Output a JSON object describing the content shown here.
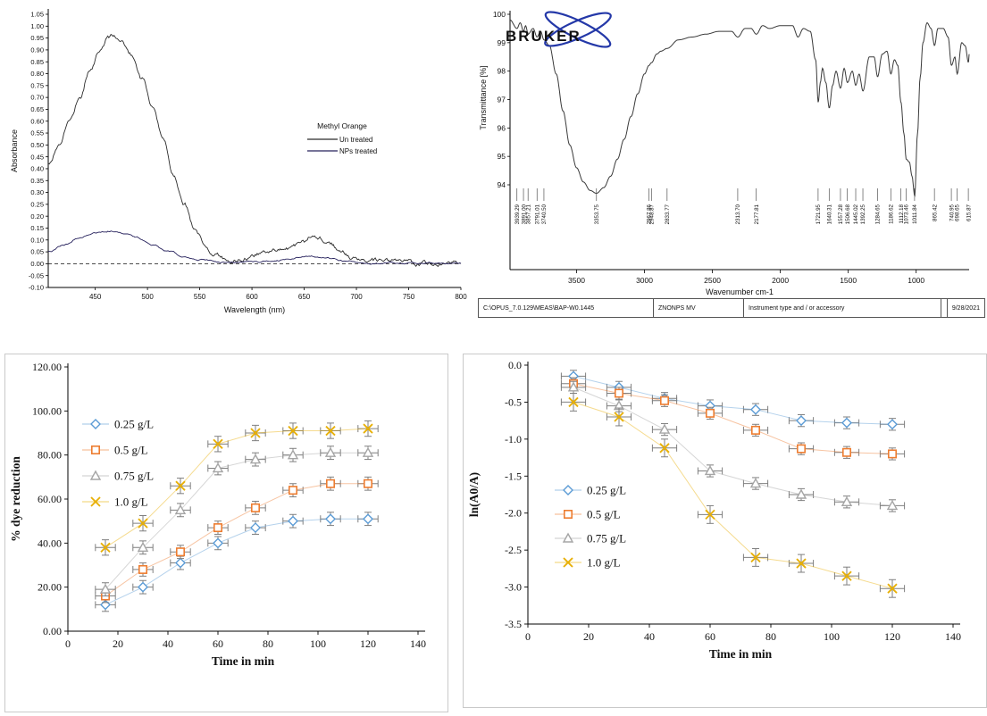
{
  "chart_data": [
    {
      "id": "uvvis-absorbance-spectrum",
      "type": "line",
      "xlabel": "Wavelength (nm)",
      "ylabel": "Absorbance",
      "xlim": [
        405,
        800
      ],
      "ylim": [
        -0.1,
        1.05
      ],
      "xticks": [
        450,
        500,
        550,
        600,
        650,
        700,
        750,
        800
      ],
      "ytick_step": 0.05,
      "legend_title": "Methyl Orange",
      "zero_line": true,
      "series": [
        {
          "name": "Un treated",
          "color": "#2b2b2b",
          "noise": 0.012,
          "points": [
            [
              405,
              0.42
            ],
            [
              415,
              0.5
            ],
            [
              425,
              0.6
            ],
            [
              435,
              0.7
            ],
            [
              445,
              0.82
            ],
            [
              455,
              0.9
            ],
            [
              462,
              0.95
            ],
            [
              468,
              0.96
            ],
            [
              475,
              0.93
            ],
            [
              485,
              0.88
            ],
            [
              495,
              0.78
            ],
            [
              505,
              0.66
            ],
            [
              515,
              0.52
            ],
            [
              525,
              0.38
            ],
            [
              535,
              0.26
            ],
            [
              545,
              0.15
            ],
            [
              555,
              0.08
            ],
            [
              565,
              0.04
            ],
            [
              575,
              0.02
            ],
            [
              590,
              0.02
            ],
            [
              605,
              0.04
            ],
            [
              620,
              0.06
            ],
            [
              635,
              0.07
            ],
            [
              650,
              0.09
            ],
            [
              658,
              0.12
            ],
            [
              665,
              0.11
            ],
            [
              675,
              0.08
            ],
            [
              685,
              0.05
            ],
            [
              695,
              0.02
            ],
            [
              710,
              0.01
            ],
            [
              730,
              0.005
            ],
            [
              760,
              0.002
            ],
            [
              800,
              0.0
            ]
          ]
        },
        {
          "name": "NPs treated",
          "color": "#26215c",
          "noise": 0.004,
          "points": [
            [
              405,
              0.05
            ],
            [
              420,
              0.08
            ],
            [
              435,
              0.11
            ],
            [
              450,
              0.13
            ],
            [
              465,
              0.14
            ],
            [
              478,
              0.13
            ],
            [
              490,
              0.11
            ],
            [
              505,
              0.08
            ],
            [
              520,
              0.05
            ],
            [
              535,
              0.03
            ],
            [
              550,
              0.015
            ],
            [
              570,
              0.005
            ],
            [
              600,
              0.008
            ],
            [
              630,
              0.015
            ],
            [
              655,
              0.03
            ],
            [
              670,
              0.025
            ],
            [
              690,
              0.012
            ],
            [
              710,
              0.005
            ],
            [
              750,
              0.002
            ],
            [
              800,
              0.0
            ]
          ]
        }
      ]
    },
    {
      "id": "ftir-spectrum",
      "type": "line",
      "brand": "BRUKER",
      "xlabel": "Wavenumber cm-1",
      "ylabel": "Transmittance [%]",
      "xlim": [
        610,
        3990
      ],
      "x_reversed": true,
      "ylim": [
        93.3,
        100.15
      ],
      "yticks": [
        94,
        95,
        96,
        97,
        98,
        99,
        100
      ],
      "xticks": [
        3500,
        3000,
        2500,
        2000,
        1500,
        1000
      ],
      "curve_color": "#3a3a3a",
      "peak_labels": [
        "3939.29",
        "3891.00",
        "3857.21",
        "3791.01",
        "3740.50",
        "3353.75",
        "2967.86",
        "2948.87",
        "2833.77",
        "2313.70",
        "2177.81",
        "1721.95",
        "1640.31",
        "1557.28",
        "1506.68",
        "1445.02",
        "1392.25",
        "1284.65",
        "1186.62",
        "1112.18",
        "1073.46",
        "1011.84",
        "865.42",
        "740.95",
        "698.65",
        "615.87"
      ],
      "footer": {
        "path": "C:\\OPUS_7.0.129\\MEAS\\BAP-W0.1445",
        "sample": "ZNONPS MV",
        "note": "Instrument type and / or accessory",
        "date": "9/28/2021"
      },
      "points": [
        [
          610,
          98.6
        ],
        [
          615,
          98.3
        ],
        [
          640,
          98.9
        ],
        [
          665,
          99.0
        ],
        [
          698,
          97.9
        ],
        [
          715,
          98.5
        ],
        [
          740,
          98.2
        ],
        [
          765,
          99.2
        ],
        [
          800,
          99.5
        ],
        [
          840,
          99.5
        ],
        [
          865,
          98.9
        ],
        [
          890,
          99.5
        ],
        [
          920,
          99.7
        ],
        [
          950,
          99.0
        ],
        [
          970,
          97.8
        ],
        [
          990,
          95.8
        ],
        [
          1011,
          93.6
        ],
        [
          1030,
          94.3
        ],
        [
          1050,
          94.8
        ],
        [
          1073,
          94.9
        ],
        [
          1090,
          95.8
        ],
        [
          1112,
          96.9
        ],
        [
          1135,
          98.2
        ],
        [
          1160,
          98.4
        ],
        [
          1186,
          97.9
        ],
        [
          1215,
          98.7
        ],
        [
          1250,
          98.6
        ],
        [
          1284,
          97.8
        ],
        [
          1310,
          98.5
        ],
        [
          1345,
          98.5
        ],
        [
          1392,
          97.3
        ],
        [
          1420,
          97.9
        ],
        [
          1445,
          97.5
        ],
        [
          1470,
          98.0
        ],
        [
          1506,
          97.6
        ],
        [
          1530,
          98.1
        ],
        [
          1557,
          97.4
        ],
        [
          1590,
          98.0
        ],
        [
          1615,
          97.5
        ],
        [
          1640,
          96.7
        ],
        [
          1665,
          97.6
        ],
        [
          1690,
          98.1
        ],
        [
          1705,
          97.6
        ],
        [
          1721,
          96.9
        ],
        [
          1740,
          98.4
        ],
        [
          1780,
          99.4
        ],
        [
          1830,
          99.5
        ],
        [
          1870,
          99.2
        ],
        [
          1910,
          99.6
        ],
        [
          2000,
          99.6
        ],
        [
          2080,
          99.5
        ],
        [
          2130,
          99.6
        ],
        [
          2177,
          99.3
        ],
        [
          2215,
          99.5
        ],
        [
          2260,
          99.5
        ],
        [
          2313,
          99.2
        ],
        [
          2360,
          99.4
        ],
        [
          2450,
          99.4
        ],
        [
          2550,
          99.3
        ],
        [
          2650,
          99.2
        ],
        [
          2750,
          99.1
        ],
        [
          2833,
          98.8
        ],
        [
          2880,
          98.7
        ],
        [
          2910,
          98.6
        ],
        [
          2948,
          98.3
        ],
        [
          2967,
          98.2
        ],
        [
          3000,
          97.9
        ],
        [
          3050,
          97.2
        ],
        [
          3100,
          96.4
        ],
        [
          3150,
          95.6
        ],
        [
          3200,
          94.9
        ],
        [
          3250,
          94.3
        ],
        [
          3300,
          93.9
        ],
        [
          3354,
          93.7
        ],
        [
          3400,
          93.8
        ],
        [
          3450,
          94.1
        ],
        [
          3500,
          94.6
        ],
        [
          3550,
          95.4
        ],
        [
          3600,
          96.6
        ],
        [
          3650,
          97.9
        ],
        [
          3700,
          98.9
        ],
        [
          3740,
          99.1
        ],
        [
          3765,
          99.4
        ],
        [
          3791,
          99.2
        ],
        [
          3820,
          99.5
        ],
        [
          3857,
          99.3
        ],
        [
          3875,
          99.6
        ],
        [
          3891,
          99.4
        ],
        [
          3915,
          99.7
        ],
        [
          3939,
          99.5
        ],
        [
          3990,
          99.8
        ]
      ]
    },
    {
      "id": "dye-reduction-kinetics",
      "type": "scatter",
      "xlabel": "Time in min",
      "ylabel": "% dye reduction",
      "xlim": [
        0,
        140
      ],
      "ylim": [
        0,
        120
      ],
      "xticks": [
        0,
        20,
        40,
        60,
        80,
        100,
        120,
        140
      ],
      "yticks": [
        0,
        20,
        40,
        60,
        80,
        100,
        120
      ],
      "y_decimals": 2,
      "x": [
        15,
        30,
        45,
        60,
        75,
        90,
        105,
        120
      ],
      "xerr": 4,
      "series": [
        {
          "name": "0.25 g/L",
          "marker": "diamond",
          "color": "#5b9bd5",
          "yerr": 3,
          "values": [
            12,
            20,
            31,
            40,
            47,
            50,
            51,
            51
          ]
        },
        {
          "name": "0.5 g/L",
          "marker": "square",
          "color": "#ed7d31",
          "yerr": 3,
          "values": [
            16,
            28,
            36,
            47,
            56,
            64,
            67,
            67
          ]
        },
        {
          "name": "0.75 g/L",
          "marker": "triangle",
          "color": "#a5a5a5",
          "yerr": 3,
          "values": [
            19,
            38,
            55,
            74,
            78,
            80,
            81,
            81
          ]
        },
        {
          "name": "1.0 g/L",
          "marker": "x",
          "color": "#e8b007",
          "yerr": 3.5,
          "values": [
            38,
            49,
            66,
            85,
            90,
            91,
            91,
            92
          ]
        }
      ]
    },
    {
      "id": "ln-a0-a-kinetics",
      "type": "scatter",
      "xlabel": "Time in min",
      "ylabel": "ln(A0/A)",
      "xlim": [
        0,
        140
      ],
      "ylim": [
        -3.5,
        0
      ],
      "xticks": [
        0,
        20,
        40,
        60,
        80,
        100,
        120,
        140
      ],
      "yticks": [
        0,
        -0.5,
        -1,
        -1.5,
        -2,
        -2.5,
        -3,
        -3.5
      ],
      "y_decimals": 1,
      "x": [
        15,
        30,
        45,
        60,
        75,
        90,
        105,
        120
      ],
      "xerr": 4,
      "series": [
        {
          "name": "0.25 g/L",
          "marker": "diamond",
          "color": "#5b9bd5",
          "yerr": 0.08,
          "values": [
            -0.15,
            -0.3,
            -0.45,
            -0.55,
            -0.6,
            -0.75,
            -0.78,
            -0.8
          ]
        },
        {
          "name": "0.5 g/L",
          "marker": "square",
          "color": "#ed7d31",
          "yerr": 0.08,
          "values": [
            -0.25,
            -0.38,
            -0.48,
            -0.65,
            -0.88,
            -1.13,
            -1.18,
            -1.2
          ]
        },
        {
          "name": "0.75 g/L",
          "marker": "triangle",
          "color": "#a5a5a5",
          "yerr": 0.08,
          "values": [
            -0.3,
            -0.55,
            -0.87,
            -1.43,
            -1.6,
            -1.75,
            -1.85,
            -1.9
          ]
        },
        {
          "name": "1.0 g/L",
          "marker": "x",
          "color": "#e8b007",
          "yerr": 0.12,
          "values": [
            -0.5,
            -0.7,
            -1.12,
            -2.02,
            -2.6,
            -2.68,
            -2.85,
            -3.02
          ]
        }
      ]
    }
  ]
}
